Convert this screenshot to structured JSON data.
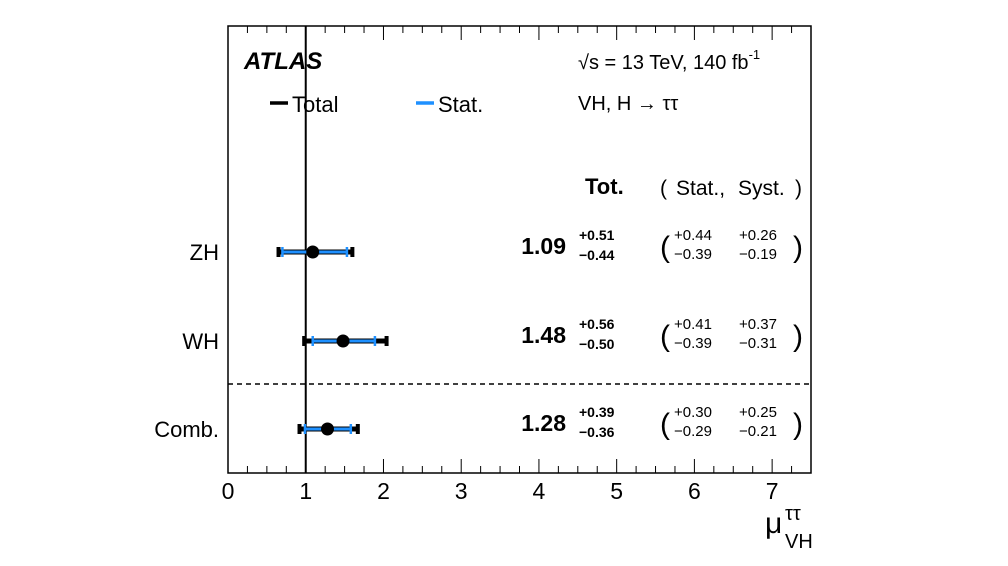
{
  "chart_data": {
    "type": "forest",
    "experiment": "ATLAS",
    "energy_text": "√s = 13 TeV, 140 fb",
    "lumi_sup": "-1",
    "process": "VH, H → ττ",
    "legend": [
      {
        "label": "Total",
        "color": "#000000"
      },
      {
        "label": "Stat.",
        "color": "#1e90ff"
      }
    ],
    "header": {
      "tot": "Tot.",
      "open": "(",
      "stat": "Stat.,",
      "syst": "Syst.",
      "close": ")"
    },
    "xlabel": {
      "main": "μ",
      "sup": "ττ",
      "sub": "VH"
    },
    "xlim": [
      0,
      7.5
    ],
    "xticks": [
      0,
      1,
      2,
      3,
      4,
      5,
      6,
      7
    ],
    "reference_line": 1,
    "colors": {
      "total": "#000000",
      "stat": "#1e90ff",
      "separator": "#000000"
    },
    "entries": [
      {
        "label": "ZH",
        "value": 1.09,
        "value_text": "1.09",
        "tot_up": 0.51,
        "tot_dn": 0.44,
        "tot_up_text": "+0.51",
        "tot_dn_text": "−0.44",
        "stat_up": 0.44,
        "stat_dn": 0.39,
        "stat_up_text": "+0.44",
        "stat_dn_text": "−0.39",
        "syst_up": 0.26,
        "syst_dn": 0.19,
        "syst_up_text": "+0.26",
        "syst_dn_text": "−0.19"
      },
      {
        "label": "WH",
        "value": 1.48,
        "value_text": "1.48",
        "tot_up": 0.56,
        "tot_dn": 0.5,
        "tot_up_text": "+0.56",
        "tot_dn_text": "−0.50",
        "stat_up": 0.41,
        "stat_dn": 0.39,
        "stat_up_text": "+0.41",
        "stat_dn_text": "−0.39",
        "syst_up": 0.37,
        "syst_dn": 0.31,
        "syst_up_text": "+0.37",
        "syst_dn_text": "−0.31"
      },
      {
        "label": "Comb.",
        "value": 1.28,
        "value_text": "1.28",
        "tot_up": 0.39,
        "tot_dn": 0.36,
        "tot_up_text": "+0.39",
        "tot_dn_text": "−0.36",
        "stat_up": 0.3,
        "stat_dn": 0.29,
        "stat_up_text": "+0.30",
        "stat_dn_text": "−0.29",
        "syst_up": 0.25,
        "syst_dn": 0.21,
        "syst_up_text": "+0.25",
        "syst_dn_text": "−0.21"
      }
    ],
    "separator_after_index": 1
  }
}
